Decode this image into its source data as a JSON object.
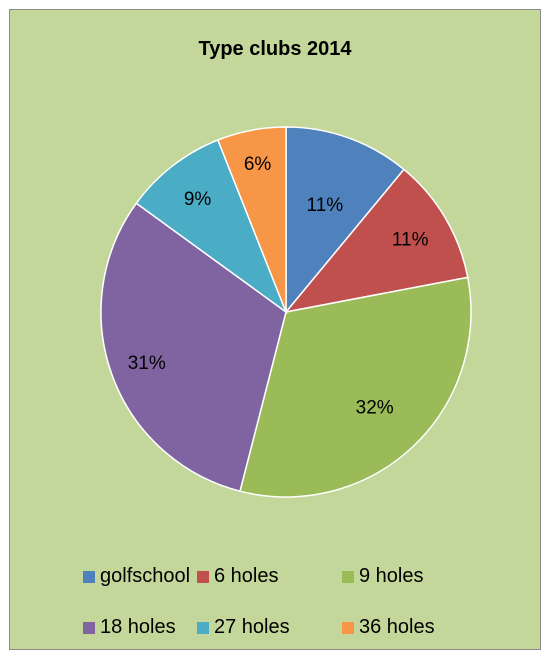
{
  "chart_data": {
    "type": "pie",
    "title": "Type clubs 2014",
    "categories": [
      "golfschool",
      "6 holes",
      "9 holes",
      "18 holes",
      "27 holes",
      "36 holes"
    ],
    "values": [
      11,
      11,
      32,
      31,
      9,
      6
    ],
    "data_labels": [
      "11%",
      "11%",
      "32%",
      "31%",
      "9%",
      "6%"
    ],
    "colors": [
      "#4f81bd",
      "#c0504d",
      "#9bbb59",
      "#8064a2",
      "#4bacc6",
      "#f79646"
    ],
    "start_angle": "12 o'clock",
    "direction": "clockwise",
    "legend_position": "bottom",
    "background": "#c4d79b"
  }
}
